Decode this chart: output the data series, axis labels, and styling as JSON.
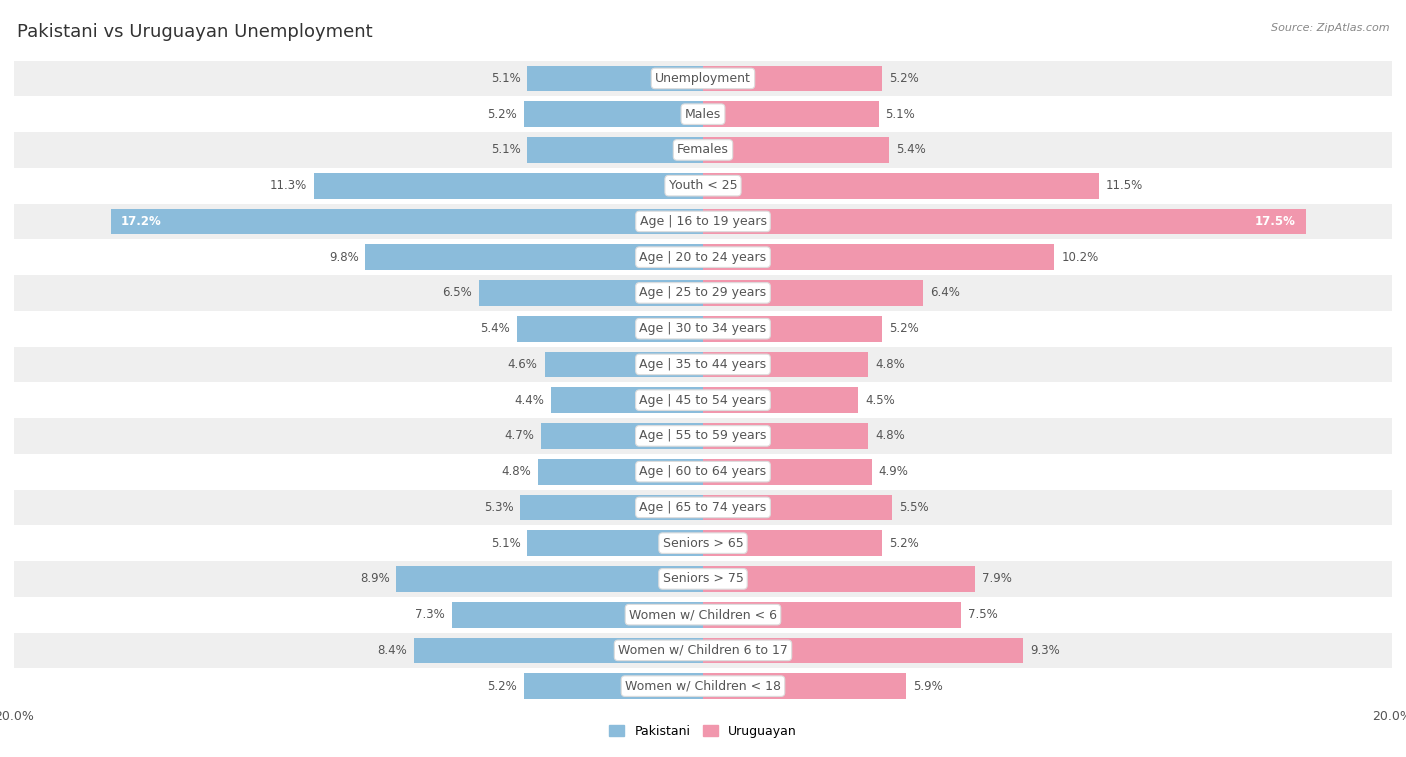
{
  "title": "Pakistani vs Uruguayan Unemployment",
  "source": "Source: ZipAtlas.com",
  "categories": [
    "Unemployment",
    "Males",
    "Females",
    "Youth < 25",
    "Age | 16 to 19 years",
    "Age | 20 to 24 years",
    "Age | 25 to 29 years",
    "Age | 30 to 34 years",
    "Age | 35 to 44 years",
    "Age | 45 to 54 years",
    "Age | 55 to 59 years",
    "Age | 60 to 64 years",
    "Age | 65 to 74 years",
    "Seniors > 65",
    "Seniors > 75",
    "Women w/ Children < 6",
    "Women w/ Children 6 to 17",
    "Women w/ Children < 18"
  ],
  "pakistani": [
    5.1,
    5.2,
    5.1,
    11.3,
    17.2,
    9.8,
    6.5,
    5.4,
    4.6,
    4.4,
    4.7,
    4.8,
    5.3,
    5.1,
    8.9,
    7.3,
    8.4,
    5.2
  ],
  "uruguayan": [
    5.2,
    5.1,
    5.4,
    11.5,
    17.5,
    10.2,
    6.4,
    5.2,
    4.8,
    4.5,
    4.8,
    4.9,
    5.5,
    5.2,
    7.9,
    7.5,
    9.3,
    5.9
  ],
  "max_val": 20.0,
  "pakistani_color": "#8bbcdb",
  "uruguayan_color": "#f197ad",
  "bar_height": 0.72,
  "row_bg_light": "#efefef",
  "row_bg_white": "#ffffff",
  "title_fontsize": 13,
  "label_fontsize": 9,
  "value_fontsize": 8.5,
  "axis_fontsize": 9,
  "label_bg": "#ffffff",
  "label_text_color": "#555555",
  "value_text_color": "#555555"
}
